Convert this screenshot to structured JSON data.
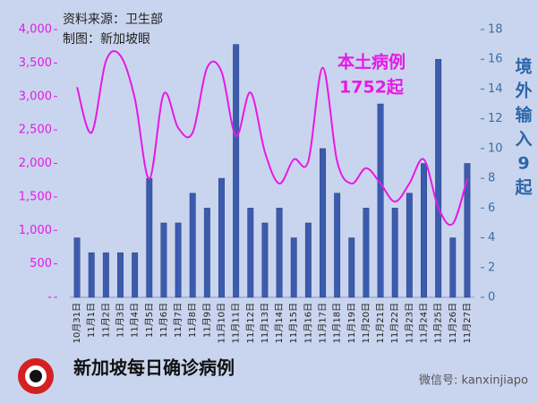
{
  "chart_data": {
    "type": "bar-line",
    "source": "资料来源：卫生部",
    "credit": "制图：新加坡眼",
    "title": "新加坡每日确诊病例",
    "watermark": "微信号: kanxinjiapo",
    "line_annotation": [
      "本土病例",
      "1752起"
    ],
    "bar_annotation": [
      "境",
      "外",
      "输",
      "入",
      "9",
      "起"
    ],
    "categories": [
      "10月31日",
      "11月1日",
      "11月2日",
      "11月3日",
      "11月4日",
      "11月5日",
      "11月6日",
      "11月7日",
      "11月8日",
      "11月9日",
      "11月10日",
      "11月11日",
      "11月12日",
      "11月13日",
      "11月14日",
      "11月15日",
      "11月16日",
      "11月17日",
      "11月18日",
      "11月19日",
      "11月20日",
      "11月21日",
      "11月22日",
      "11月23日",
      "11月24日",
      "11月25日",
      "11月26日",
      "11月27日"
    ],
    "series": [
      {
        "type": "line",
        "color": "#e619e6",
        "values": [
          3140,
          2460,
          3530,
          3610,
          2970,
          1770,
          3040,
          2530,
          2460,
          3430,
          3370,
          2410,
          3060,
          2170,
          1700,
          2060,
          2030,
          3430,
          2030,
          1700,
          1930,
          1700,
          1430,
          1700,
          2060,
          1340,
          1100,
          1770
        ]
      },
      {
        "type": "bar",
        "axis": "y2",
        "color": "#3b5cae",
        "values": [
          4,
          3,
          3,
          3,
          3,
          8,
          5,
          5,
          7,
          6,
          8,
          17,
          6,
          5,
          6,
          4,
          5,
          10,
          7,
          4,
          6,
          13,
          6,
          7,
          9,
          16,
          4,
          9
        ]
      }
    ],
    "ylim": [
      0,
      4000
    ],
    "yticks": [
      {
        "value": 0,
        "label": "-"
      },
      {
        "value": 500,
        "label": "500"
      },
      {
        "value": 1000,
        "label": "1,000"
      },
      {
        "value": 1500,
        "label": "1,500"
      },
      {
        "value": 2000,
        "label": "2,000"
      },
      {
        "value": 2500,
        "label": "2,500"
      },
      {
        "value": 3000,
        "label": "3,000"
      },
      {
        "value": 3500,
        "label": "3,500"
      },
      {
        "value": 4000,
        "label": "4,000"
      }
    ],
    "y2lim": [
      0,
      18
    ],
    "y2ticks": [
      0,
      2,
      4,
      6,
      8,
      10,
      12,
      14,
      16,
      18
    ],
    "ytick_color": "#e619e6",
    "y2tick_color": "#3b6ea8"
  }
}
